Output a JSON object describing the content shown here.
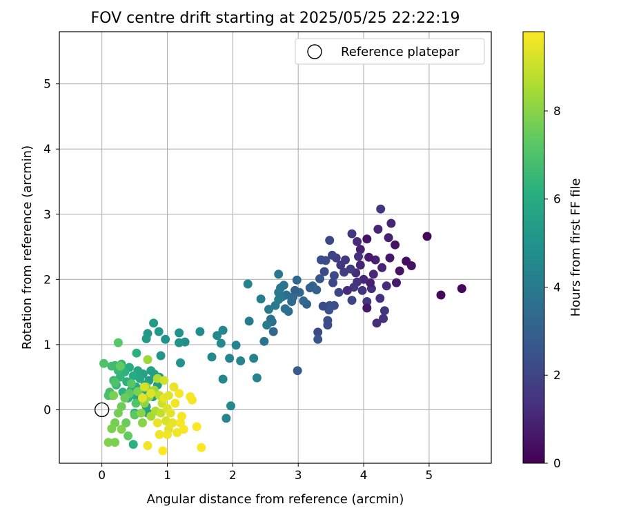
{
  "chart_data": {
    "type": "scatter",
    "title": "FOV centre drift starting at 2025/05/25 22:22:19",
    "xlabel": "Angular distance from reference (arcmin)",
    "ylabel": "Rotation from reference (arcmin)",
    "xlim": [
      -0.65,
      5.95
    ],
    "ylim": [
      -0.82,
      5.8
    ],
    "x_ticks": [
      0,
      1,
      2,
      3,
      4,
      5
    ],
    "y_ticks": [
      0,
      1,
      2,
      3,
      4,
      5
    ],
    "grid": true,
    "legend": {
      "position": "top-right",
      "entries": [
        "Reference platepar"
      ]
    },
    "reference_point": {
      "x": 0,
      "y": 0,
      "label": "Reference platepar"
    },
    "colorbar": {
      "label": "Hours from first FF file",
      "min": 0,
      "max": 9.8,
      "ticks": [
        0,
        2,
        4,
        6,
        8
      ],
      "colormap": "viridis"
    },
    "points": [
      [
        5.5,
        1.86,
        0.2
      ],
      [
        5.18,
        1.76,
        0.2
      ],
      [
        4.97,
        2.66,
        0.2
      ],
      [
        4.73,
        2.21,
        0.5
      ],
      [
        4.65,
        2.28,
        0.4
      ],
      [
        4.55,
        2.13,
        0.5
      ],
      [
        4.5,
        1.95,
        0.7
      ],
      [
        4.48,
        2.53,
        0.5
      ],
      [
        4.42,
        2.86,
        1.0
      ],
      [
        4.38,
        2.64,
        0.9
      ],
      [
        4.4,
        2.33,
        0.6
      ],
      [
        4.35,
        1.9,
        1.2
      ],
      [
        4.3,
        1.4,
        1.4
      ],
      [
        4.32,
        1.52,
        1.5
      ],
      [
        4.28,
        2.18,
        1.0
      ],
      [
        4.25,
        1.71,
        1.3
      ],
      [
        4.2,
        1.33,
        1.2
      ],
      [
        4.22,
        2.77,
        1.0
      ],
      [
        4.26,
        3.08,
        1.6
      ],
      [
        4.18,
        2.3,
        0.9
      ],
      [
        4.15,
        2.08,
        1.1
      ],
      [
        4.12,
        1.86,
        1.3
      ],
      [
        4.1,
        1.95,
        0.9
      ],
      [
        4.08,
        2.34,
        0.7
      ],
      [
        4.05,
        1.66,
        1.6
      ],
      [
        4.05,
        1.56,
        0.6
      ],
      [
        4.05,
        2.62,
        0.5
      ],
      [
        4.0,
        2.0,
        1.1
      ],
      [
        3.98,
        1.83,
        1.5
      ],
      [
        3.95,
        2.22,
        1.0
      ],
      [
        3.95,
        2.46,
        0.9
      ],
      [
        3.92,
        2.35,
        1.4
      ],
      [
        3.9,
        1.96,
        1.4
      ],
      [
        3.9,
        2.58,
        1.2
      ],
      [
        3.88,
        2.1,
        1.2
      ],
      [
        3.85,
        1.88,
        1.6
      ],
      [
        3.82,
        1.68,
        2.0
      ],
      [
        3.8,
        2.16,
        1.7
      ],
      [
        3.82,
        2.7,
        1.6
      ],
      [
        3.75,
        1.83,
        1.2
      ],
      [
        3.72,
        2.3,
        1.6
      ],
      [
        3.7,
        2.11,
        1.8
      ],
      [
        3.65,
        2.22,
        1.5
      ],
      [
        3.62,
        1.8,
        2.1
      ],
      [
        3.58,
        2.33,
        1.8
      ],
      [
        3.55,
        1.6,
        2.3
      ],
      [
        3.55,
        2.06,
        2.2
      ],
      [
        3.53,
        1.95,
        2.1
      ],
      [
        3.52,
        2.37,
        2.0
      ],
      [
        3.48,
        2.6,
        2.1
      ],
      [
        3.48,
        1.6,
        2.4
      ],
      [
        3.47,
        1.53,
        2.5
      ],
      [
        3.45,
        1.37,
        2.4
      ],
      [
        3.45,
        1.3,
        2.3
      ],
      [
        3.42,
        2.29,
        2.3
      ],
      [
        3.4,
        2.12,
        2.2
      ],
      [
        3.38,
        1.59,
        2.2
      ],
      [
        3.35,
        2.3,
        2.3
      ],
      [
        3.33,
        2.01,
        2.6
      ],
      [
        3.3,
        1.19,
        2.2
      ],
      [
        3.3,
        1.08,
        2.6
      ],
      [
        3.28,
        1.84,
        3.1
      ],
      [
        3.22,
        1.9,
        3.2
      ],
      [
        3.18,
        1.87,
        3.0
      ],
      [
        3.13,
        1.62,
        3.0
      ],
      [
        3.08,
        1.67,
        3.3
      ],
      [
        3.02,
        1.8,
        3.2
      ],
      [
        2.98,
        1.99,
        3.2
      ],
      [
        2.95,
        1.83,
        3.0
      ],
      [
        2.92,
        1.73,
        3.3
      ],
      [
        2.9,
        1.66,
        3.4
      ],
      [
        2.85,
        1.51,
        3.6
      ],
      [
        2.82,
        1.76,
        3.5
      ],
      [
        2.8,
        1.55,
        3.6
      ],
      [
        2.78,
        1.91,
        3.7
      ],
      [
        2.75,
        1.73,
        3.8
      ],
      [
        2.73,
        1.87,
        3.8
      ],
      [
        2.7,
        1.8,
        3.9
      ],
      [
        2.7,
        2.08,
        3.9
      ],
      [
        2.7,
        1.69,
        4.0
      ],
      [
        2.65,
        1.6,
        4.0
      ],
      [
        2.62,
        1.2,
        3.2
      ],
      [
        2.6,
        1.35,
        3.5
      ],
      [
        2.58,
        1.39,
        3.6
      ],
      [
        2.55,
        1.54,
        4.0
      ],
      [
        2.52,
        1.3,
        4.0
      ],
      [
        2.48,
        1.05,
        3.7
      ],
      [
        2.43,
        1.7,
        4.1
      ],
      [
        2.25,
        1.36,
        4.1
      ],
      [
        2.23,
        1.93,
        4.3
      ],
      [
        2.32,
        0.79,
        4.3
      ],
      [
        2.37,
        0.49,
        4.3
      ],
      [
        2.12,
        0.75,
        4.3
      ],
      [
        2.05,
        0.99,
        4.4
      ],
      [
        1.95,
        0.79,
        4.4
      ],
      [
        1.9,
        -0.13,
        4.4
      ],
      [
        1.97,
        0.06,
        4.6
      ],
      [
        1.85,
        1.22,
        4.5
      ],
      [
        1.82,
        1.02,
        4.6
      ],
      [
        1.85,
        0.47,
        4.5
      ],
      [
        1.76,
        1.14,
        4.6
      ],
      [
        1.68,
        0.81,
        4.6
      ],
      [
        1.5,
        1.2,
        4.7
      ],
      [
        2.99,
        0.6,
        2.8
      ],
      [
        1.27,
        1.04,
        4.8
      ],
      [
        1.18,
        1.18,
        4.9
      ],
      [
        1.18,
        1.03,
        5.0
      ],
      [
        1.2,
        0.72,
        5.0
      ],
      [
        0.97,
        1.08,
        5.0
      ],
      [
        0.9,
        0.83,
        5.1
      ],
      [
        0.87,
        1.2,
        5.2
      ],
      [
        0.79,
        1.33,
        5.3
      ],
      [
        0.7,
        1.17,
        5.2
      ],
      [
        0.68,
        1.09,
        5.3
      ],
      [
        0.88,
        0.5,
        5.3
      ],
      [
        0.85,
        0.38,
        5.4
      ],
      [
        0.8,
        0.55,
        5.4
      ],
      [
        0.78,
        0.2,
        5.5
      ],
      [
        0.75,
        0.6,
        5.5
      ],
      [
        0.72,
        0.45,
        5.5
      ],
      [
        0.7,
        0.27,
        5.6
      ],
      [
        0.68,
        0.05,
        5.6
      ],
      [
        0.7,
        -0.05,
        5.5
      ],
      [
        0.66,
        0.38,
        5.6
      ],
      [
        0.63,
        0.55,
        5.6
      ],
      [
        0.62,
        0.15,
        5.7
      ],
      [
        0.6,
        0.32,
        5.7
      ],
      [
        0.58,
        0.48,
        5.8
      ],
      [
        0.55,
        0.6,
        5.8
      ],
      [
        0.53,
        0.2,
        5.8
      ],
      [
        0.52,
        0.35,
        5.9
      ],
      [
        0.5,
        -0.05,
        6.0
      ],
      [
        0.48,
        0.52,
        6.0
      ],
      [
        0.45,
        0.3,
        6.0
      ],
      [
        0.42,
        0.65,
        6.1
      ],
      [
        0.4,
        0.18,
        6.2
      ],
      [
        0.38,
        0.43,
        6.2
      ],
      [
        0.35,
        0.58,
        6.3
      ],
      [
        0.32,
        0.27,
        6.3
      ],
      [
        0.3,
        0.7,
        6.4
      ],
      [
        0.28,
        0.5,
        6.4
      ],
      [
        0.25,
        0.6,
        6.5
      ],
      [
        0.22,
        0.38,
        6.5
      ],
      [
        0.2,
        0.68,
        6.6
      ],
      [
        0.18,
        0.45,
        6.6
      ],
      [
        0.16,
        0.22,
        6.7
      ],
      [
        0.15,
        0.67,
        6.7
      ],
      [
        0.12,
        0.27,
        6.8
      ],
      [
        0.1,
        0.22,
        6.9
      ],
      [
        0.03,
        0.71,
        7.0
      ],
      [
        0.2,
        0.42,
        7.0
      ],
      [
        0.25,
        1.03,
        7.2
      ],
      [
        0.53,
        0.87,
        6.2
      ],
      [
        0.52,
        0.1,
        7.1
      ],
      [
        0.48,
        -0.53,
        6.2
      ],
      [
        0.5,
        -0.08,
        7.3
      ],
      [
        0.45,
        0.4,
        7.2
      ],
      [
        0.42,
        0.25,
        7.3
      ],
      [
        0.4,
        -0.4,
        7.4
      ],
      [
        0.37,
        -0.2,
        7.5
      ],
      [
        0.35,
        0.18,
        7.5
      ],
      [
        0.3,
        0.05,
        7.6
      ],
      [
        0.28,
        0.67,
        7.4
      ],
      [
        0.25,
        -0.05,
        7.7
      ],
      [
        0.2,
        -0.2,
        7.7
      ],
      [
        0.18,
        0.22,
        7.8
      ],
      [
        0.15,
        -0.29,
        7.8
      ],
      [
        0.1,
        -0.5,
        7.9
      ],
      [
        0.2,
        -0.5,
        7.8
      ],
      [
        0.3,
        -0.3,
        7.9
      ],
      [
        0.55,
        0.28,
        7.8
      ],
      [
        0.6,
        -0.05,
        8.0
      ],
      [
        0.62,
        -0.2,
        8.0
      ],
      [
        0.65,
        0.1,
        8.1
      ],
      [
        0.68,
        0.35,
        8.1
      ],
      [
        0.7,
        0.77,
        8.3
      ],
      [
        0.72,
        0.2,
        8.3
      ],
      [
        0.75,
        -0.1,
        8.4
      ],
      [
        0.8,
        0.3,
        8.4
      ],
      [
        0.82,
        -0.02,
        8.6
      ],
      [
        0.85,
        0.48,
        8.6
      ],
      [
        0.88,
        0.22,
        8.8
      ],
      [
        0.9,
        -0.05,
        8.9
      ],
      [
        0.92,
        0.1,
        9.0
      ],
      [
        0.95,
        0.45,
        9.1
      ],
      [
        0.98,
        -0.17,
        9.2
      ],
      [
        1.0,
        0.02,
        9.3
      ],
      [
        1.02,
        -0.3,
        9.4
      ],
      [
        1.05,
        -0.05,
        9.4
      ],
      [
        1.08,
        -0.2,
        9.5
      ],
      [
        1.1,
        0.35,
        9.5
      ],
      [
        1.12,
        0.1,
        9.6
      ],
      [
        1.15,
        -0.35,
        9.6
      ],
      [
        1.18,
        0.25,
        9.7
      ],
      [
        1.2,
        -0.2,
        9.7
      ],
      [
        1.22,
        -0.1,
        9.7
      ],
      [
        1.25,
        -0.3,
        9.7
      ],
      [
        1.35,
        0.2,
        9.7
      ],
      [
        1.38,
        0.15,
        9.7
      ],
      [
        1.45,
        -0.26,
        9.8
      ],
      [
        1.52,
        -0.58,
        9.8
      ],
      [
        0.93,
        -0.63,
        9.8
      ],
      [
        0.88,
        -0.38,
        9.6
      ],
      [
        0.7,
        -0.55,
        9.6
      ],
      [
        0.85,
        -0.2,
        9.5
      ],
      [
        0.75,
        0.25,
        9.3
      ],
      [
        0.62,
        0.18,
        9.4
      ],
      [
        0.95,
        0.18,
        9.5
      ],
      [
        1.0,
        -0.38,
        9.6
      ],
      [
        1.02,
        0.22,
        9.4
      ],
      [
        0.65,
        0.35,
        9.2
      ]
    ]
  }
}
